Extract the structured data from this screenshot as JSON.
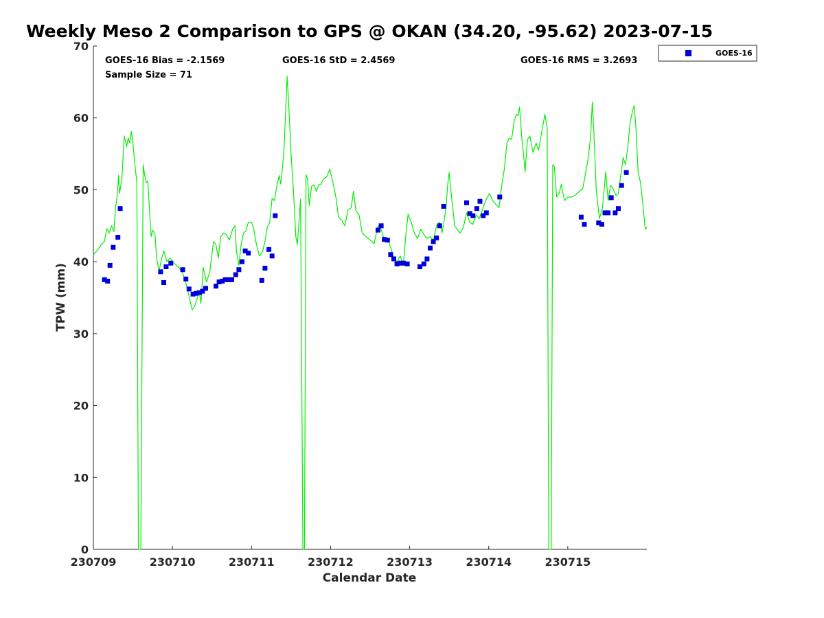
{
  "chart_data": {
    "type": "scatter",
    "title": "Weekly Meso 2 Comparison to GPS @ OKAN (34.20, -95.62) 2023-07-15",
    "xlabel": "Calendar Date",
    "ylabel": "TPW (mm)",
    "xlim": [
      0,
      7
    ],
    "ylim": [
      0,
      70
    ],
    "x_ticks": [
      0,
      1,
      2,
      3,
      4,
      5,
      6
    ],
    "x_tick_labels": [
      "230709",
      "230710",
      "230711",
      "230712",
      "230713",
      "230714",
      "230715"
    ],
    "y_ticks": [
      0,
      10,
      20,
      30,
      40,
      50,
      60,
      70
    ],
    "y_tick_labels": [
      "0",
      "10",
      "20",
      "30",
      "40",
      "50",
      "60",
      "70"
    ],
    "grid": false,
    "legend_position": "outside-top-right",
    "stats": {
      "bias": "GOES-16 Bias = -2.1569",
      "sample_size": "Sample Size = 71",
      "std": "GOES-16 StD = 2.4569",
      "rms": "GOES-16 RMS = 3.2693"
    },
    "series": [
      {
        "name": "GOES-16",
        "kind": "scatter",
        "marker": "square",
        "color": "#0000dd",
        "points": [
          [
            0.14,
            37.5
          ],
          [
            0.18,
            37.3
          ],
          [
            0.21,
            39.5
          ],
          [
            0.25,
            42.0
          ],
          [
            0.31,
            43.4
          ],
          [
            0.34,
            47.4
          ],
          [
            0.85,
            38.6
          ],
          [
            0.89,
            37.1
          ],
          [
            0.92,
            39.3
          ],
          [
            0.98,
            39.8
          ],
          [
            1.13,
            38.9
          ],
          [
            1.17,
            37.6
          ],
          [
            1.21,
            36.2
          ],
          [
            1.26,
            35.5
          ],
          [
            1.3,
            35.6
          ],
          [
            1.34,
            35.7
          ],
          [
            1.38,
            35.9
          ],
          [
            1.42,
            36.3
          ],
          [
            1.55,
            36.6
          ],
          [
            1.59,
            37.2
          ],
          [
            1.63,
            37.3
          ],
          [
            1.67,
            37.5
          ],
          [
            1.71,
            37.5
          ],
          [
            1.75,
            37.5
          ],
          [
            1.8,
            38.2
          ],
          [
            1.84,
            38.9
          ],
          [
            1.88,
            40.0
          ],
          [
            1.92,
            41.5
          ],
          [
            1.96,
            41.2
          ],
          [
            2.13,
            37.4
          ],
          [
            2.17,
            39.1
          ],
          [
            2.22,
            41.7
          ],
          [
            2.26,
            40.8
          ],
          [
            2.3,
            46.4
          ],
          [
            3.6,
            44.4
          ],
          [
            3.64,
            45.0
          ],
          [
            3.68,
            43.1
          ],
          [
            3.72,
            43.0
          ],
          [
            3.76,
            41.0
          ],
          [
            3.8,
            40.4
          ],
          [
            3.84,
            39.7
          ],
          [
            3.88,
            39.8
          ],
          [
            3.92,
            39.8
          ],
          [
            3.97,
            39.7
          ],
          [
            4.13,
            39.3
          ],
          [
            4.18,
            39.7
          ],
          [
            4.22,
            40.4
          ],
          [
            4.26,
            41.9
          ],
          [
            4.3,
            42.8
          ],
          [
            4.34,
            43.3
          ],
          [
            4.38,
            45.0
          ],
          [
            4.43,
            47.7
          ],
          [
            4.72,
            48.2
          ],
          [
            4.76,
            46.7
          ],
          [
            4.8,
            46.4
          ],
          [
            4.85,
            47.4
          ],
          [
            4.89,
            48.4
          ],
          [
            4.93,
            46.4
          ],
          [
            4.97,
            46.8
          ],
          [
            5.14,
            49.0
          ],
          [
            6.17,
            46.2
          ],
          [
            6.21,
            45.2
          ],
          [
            6.39,
            45.4
          ],
          [
            6.43,
            45.2
          ],
          [
            6.47,
            46.8
          ],
          [
            6.51,
            46.8
          ],
          [
            6.55,
            48.9
          ],
          [
            6.6,
            46.8
          ],
          [
            6.64,
            47.4
          ],
          [
            6.68,
            50.6
          ],
          [
            6.74,
            52.4
          ]
        ]
      },
      {
        "name": "",
        "kind": "line",
        "color": "#00ee00",
        "points": [
          [
            0.0,
            41.0
          ],
          [
            0.05,
            41.6
          ],
          [
            0.1,
            42.4
          ],
          [
            0.14,
            42.8
          ],
          [
            0.17,
            44.6
          ],
          [
            0.2,
            44.0
          ],
          [
            0.23,
            45.0
          ],
          [
            0.26,
            44.2
          ],
          [
            0.28,
            47.5
          ],
          [
            0.3,
            49.0
          ],
          [
            0.32,
            52.0
          ],
          [
            0.33,
            49.5
          ],
          [
            0.36,
            51.5
          ],
          [
            0.39,
            57.5
          ],
          [
            0.42,
            56.0
          ],
          [
            0.44,
            57.2
          ],
          [
            0.46,
            56.5
          ],
          [
            0.48,
            58.1
          ],
          [
            0.5,
            56.5
          ],
          [
            0.52,
            54.0
          ],
          [
            0.55,
            51.0
          ],
          [
            0.57,
            0.0
          ],
          [
            0.6,
            0.0
          ],
          [
            0.63,
            53.5
          ],
          [
            0.65,
            52.0
          ],
          [
            0.67,
            51.0
          ],
          [
            0.69,
            51.2
          ],
          [
            0.71,
            47.0
          ],
          [
            0.73,
            43.5
          ],
          [
            0.75,
            44.4
          ],
          [
            0.78,
            43.8
          ],
          [
            0.8,
            40.5
          ],
          [
            0.83,
            38.6
          ],
          [
            0.86,
            40.3
          ],
          [
            0.89,
            41.5
          ],
          [
            0.93,
            40.0
          ],
          [
            0.97,
            40.5
          ],
          [
            1.02,
            39.8
          ],
          [
            1.08,
            39.2
          ],
          [
            1.13,
            38.4
          ],
          [
            1.17,
            37.0
          ],
          [
            1.21,
            35.2
          ],
          [
            1.25,
            33.3
          ],
          [
            1.28,
            33.8
          ],
          [
            1.31,
            34.8
          ],
          [
            1.34,
            35.8
          ],
          [
            1.36,
            34.2
          ],
          [
            1.39,
            39.2
          ],
          [
            1.43,
            37.2
          ],
          [
            1.47,
            38.5
          ],
          [
            1.52,
            42.8
          ],
          [
            1.55,
            42.4
          ],
          [
            1.58,
            40.5
          ],
          [
            1.61,
            43.5
          ],
          [
            1.65,
            44.0
          ],
          [
            1.68,
            43.8
          ],
          [
            1.72,
            43.0
          ],
          [
            1.76,
            44.5
          ],
          [
            1.79,
            45.0
          ],
          [
            1.81,
            41.5
          ],
          [
            1.84,
            39.5
          ],
          [
            1.87,
            42.5
          ],
          [
            1.9,
            44.0
          ],
          [
            1.93,
            44.3
          ],
          [
            1.96,
            45.5
          ],
          [
            2.0,
            45.5
          ],
          [
            2.03,
            44.5
          ],
          [
            2.06,
            42.5
          ],
          [
            2.1,
            40.8
          ],
          [
            2.14,
            41.4
          ],
          [
            2.17,
            42.8
          ],
          [
            2.2,
            44.8
          ],
          [
            2.23,
            45.5
          ],
          [
            2.26,
            48.8
          ],
          [
            2.29,
            48.5
          ],
          [
            2.32,
            50.5
          ],
          [
            2.35,
            52.0
          ],
          [
            2.37,
            50.8
          ],
          [
            2.39,
            53.0
          ],
          [
            2.41,
            55.5
          ],
          [
            2.43,
            60.5
          ],
          [
            2.45,
            65.8
          ],
          [
            2.47,
            62.0
          ],
          [
            2.5,
            55.0
          ],
          [
            2.53,
            50.0
          ],
          [
            2.56,
            43.5
          ],
          [
            2.58,
            42.4
          ],
          [
            2.62,
            48.7
          ],
          [
            2.65,
            0.0
          ],
          [
            2.67,
            0.0
          ],
          [
            2.69,
            52.1
          ],
          [
            2.71,
            51.5
          ],
          [
            2.73,
            47.8
          ],
          [
            2.76,
            50.5
          ],
          [
            2.79,
            50.7
          ],
          [
            2.82,
            49.8
          ],
          [
            2.85,
            50.7
          ],
          [
            2.88,
            50.8
          ],
          [
            2.91,
            51.5
          ],
          [
            2.95,
            51.8
          ],
          [
            2.99,
            52.9
          ],
          [
            3.03,
            51.0
          ],
          [
            3.07,
            48.8
          ],
          [
            3.1,
            46.2
          ],
          [
            3.14,
            45.8
          ],
          [
            3.18,
            45.0
          ],
          [
            3.22,
            47.2
          ],
          [
            3.26,
            47.5
          ],
          [
            3.29,
            49.8
          ],
          [
            3.32,
            47.1
          ],
          [
            3.36,
            46.5
          ],
          [
            3.4,
            44.0
          ],
          [
            3.45,
            43.5
          ],
          [
            3.5,
            43.0
          ],
          [
            3.55,
            42.5
          ],
          [
            3.6,
            45.0
          ],
          [
            3.64,
            44.5
          ],
          [
            3.68,
            43.0
          ],
          [
            3.72,
            43.2
          ],
          [
            3.76,
            42.0
          ],
          [
            3.8,
            40.5
          ],
          [
            3.84,
            40.0
          ],
          [
            3.88,
            40.8
          ],
          [
            3.92,
            39.5
          ],
          [
            3.95,
            43.5
          ],
          [
            3.98,
            46.6
          ],
          [
            4.02,
            45.5
          ],
          [
            4.06,
            44.0
          ],
          [
            4.1,
            43.2
          ],
          [
            4.14,
            44.5
          ],
          [
            4.18,
            43.8
          ],
          [
            4.22,
            43.2
          ],
          [
            4.26,
            43.5
          ],
          [
            4.3,
            43.0
          ],
          [
            4.34,
            45.0
          ],
          [
            4.38,
            45.5
          ],
          [
            4.41,
            44.0
          ],
          [
            4.44,
            46.0
          ],
          [
            4.46,
            47.5
          ],
          [
            4.48,
            50.5
          ],
          [
            4.5,
            52.4
          ],
          [
            4.53,
            49.0
          ],
          [
            4.57,
            45.0
          ],
          [
            4.6,
            44.5
          ],
          [
            4.64,
            44.0
          ],
          [
            4.68,
            44.8
          ],
          [
            4.72,
            46.8
          ],
          [
            4.76,
            45.5
          ],
          [
            4.8,
            45.2
          ],
          [
            4.84,
            46.5
          ],
          [
            4.88,
            46.0
          ],
          [
            4.92,
            47.2
          ],
          [
            4.96,
            48.5
          ],
          [
            5.01,
            49.5
          ],
          [
            5.05,
            48.5
          ],
          [
            5.09,
            48.0
          ],
          [
            5.13,
            47.5
          ],
          [
            5.17,
            51.0
          ],
          [
            5.2,
            53.0
          ],
          [
            5.23,
            56.5
          ],
          [
            5.26,
            57.2
          ],
          [
            5.29,
            57.0
          ],
          [
            5.32,
            59.5
          ],
          [
            5.35,
            60.5
          ],
          [
            5.37,
            60.3
          ],
          [
            5.39,
            61.5
          ],
          [
            5.42,
            57.0
          ],
          [
            5.44,
            55.0
          ],
          [
            5.46,
            52.5
          ],
          [
            5.49,
            57.0
          ],
          [
            5.52,
            57.5
          ],
          [
            5.56,
            55.2
          ],
          [
            5.6,
            56.5
          ],
          [
            5.63,
            55.5
          ],
          [
            5.67,
            58.0
          ],
          [
            5.71,
            60.5
          ],
          [
            5.74,
            58.5
          ],
          [
            5.76,
            0.0
          ],
          [
            5.79,
            0.0
          ],
          [
            5.81,
            53.5
          ],
          [
            5.83,
            53.2
          ],
          [
            5.86,
            49.0
          ],
          [
            5.89,
            49.5
          ],
          [
            5.92,
            50.8
          ],
          [
            5.94,
            49.5
          ],
          [
            5.96,
            48.5
          ],
          [
            6.0,
            49.0
          ],
          [
            6.05,
            49.0
          ],
          [
            6.1,
            49.3
          ],
          [
            6.15,
            49.8
          ],
          [
            6.19,
            50.2
          ],
          [
            6.22,
            52.0
          ],
          [
            6.26,
            54.5
          ],
          [
            6.29,
            57.5
          ],
          [
            6.31,
            62.2
          ],
          [
            6.33,
            58.0
          ],
          [
            6.36,
            50.0
          ],
          [
            6.4,
            46.0
          ],
          [
            6.44,
            47.5
          ],
          [
            6.46,
            50.0
          ],
          [
            6.48,
            52.5
          ],
          [
            6.51,
            48.5
          ],
          [
            6.54,
            50.6
          ],
          [
            6.57,
            50.2
          ],
          [
            6.61,
            49.2
          ],
          [
            6.64,
            49.5
          ],
          [
            6.67,
            52.0
          ],
          [
            6.7,
            54.5
          ],
          [
            6.73,
            53.5
          ],
          [
            6.76,
            56.0
          ],
          [
            6.79,
            59.5
          ],
          [
            6.82,
            61.0
          ],
          [
            6.84,
            61.7
          ],
          [
            6.86,
            59.0
          ],
          [
            6.89,
            52.5
          ],
          [
            6.92,
            51.0
          ],
          [
            6.95,
            48.0
          ],
          [
            6.98,
            44.5
          ],
          [
            7.0,
            44.8
          ]
        ]
      }
    ]
  }
}
